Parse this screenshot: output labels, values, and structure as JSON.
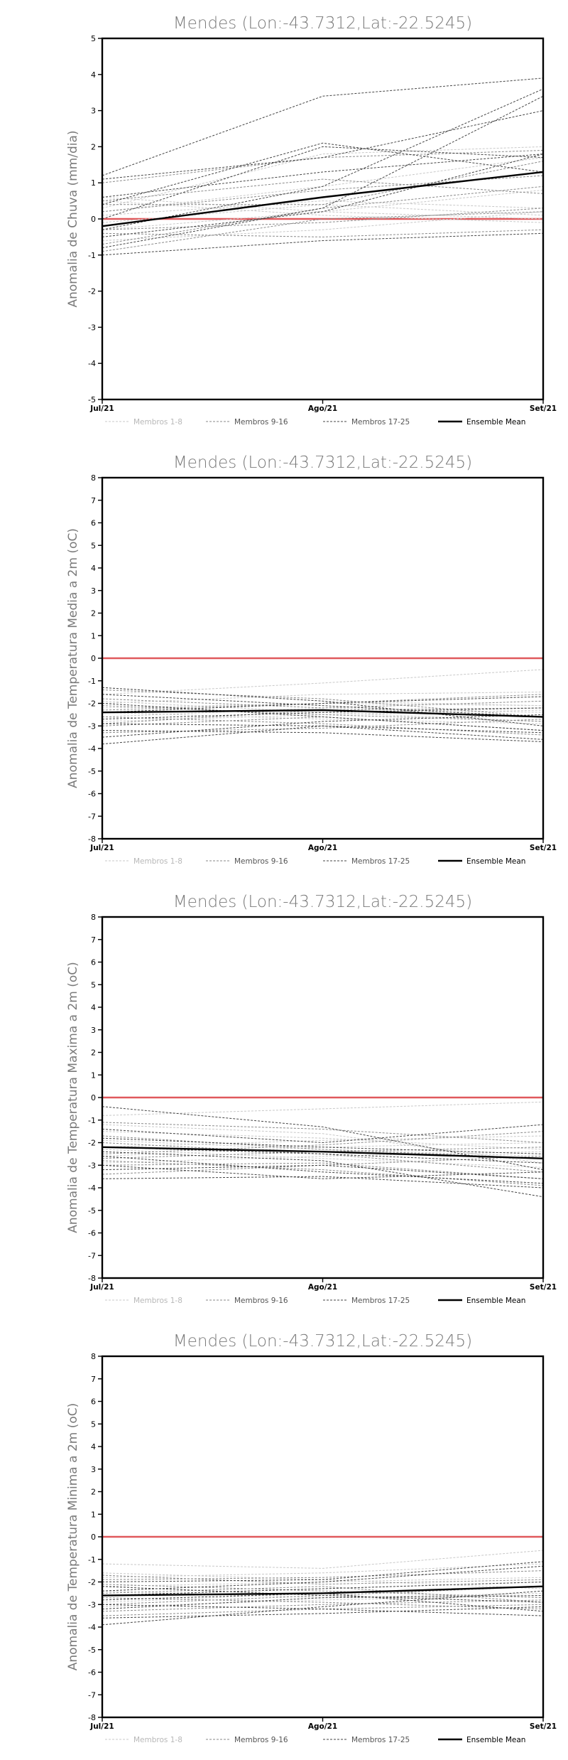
{
  "location_title": "Mendes (Lon:-43.7312,Lat:-22.5245)",
  "colors": {
    "zero_line": "#e0595c",
    "members_1_8": "#c8c8c8",
    "members_9_16": "#8a8a8a",
    "members_17_25": "#444444",
    "ensemble_mean": "#000000"
  },
  "legend": {
    "members_1_8": "Membros 1-8",
    "members_9_16": "Membros 9-16",
    "members_17_25": "Membros 17-25",
    "ensemble_mean": "Ensemble Mean"
  },
  "chart_data": [
    {
      "type": "line",
      "title": "Mendes (Lon:-43.7312,Lat:-22.5245)",
      "ylabel": "Anomalia de Chuva (mm/dia)",
      "xlabel": "",
      "categories": [
        "Jul/21",
        "Ago/21",
        "Set/21"
      ],
      "ylim": [
        -5,
        5
      ],
      "yticks": [
        -5,
        -4,
        -3,
        -2,
        -1,
        0,
        1,
        2,
        3,
        4,
        5
      ],
      "zero_line": 0,
      "grid": false,
      "legend_position": "bottom",
      "series": [
        {
          "group": "members_1_8",
          "values": [
            0.3,
            1.8,
            2.0
          ]
        },
        {
          "group": "members_1_8",
          "values": [
            0.1,
            0.5,
            0.3
          ]
        },
        {
          "group": "members_1_8",
          "values": [
            -0.3,
            0.2,
            0.8
          ]
        },
        {
          "group": "members_1_8",
          "values": [
            0.5,
            0.1,
            -0.1
          ]
        },
        {
          "group": "members_1_8",
          "values": [
            -0.6,
            -0.3,
            0.2
          ]
        },
        {
          "group": "members_1_8",
          "values": [
            0.2,
            0.9,
            1.7
          ]
        },
        {
          "group": "members_1_8",
          "values": [
            -0.1,
            0.4,
            0.1
          ]
        },
        {
          "group": "members_1_8",
          "values": [
            0.6,
            0.2,
            0.0
          ]
        },
        {
          "group": "members_9_16",
          "values": [
            0.4,
            0.4,
            1.6
          ]
        },
        {
          "group": "members_9_16",
          "values": [
            -0.9,
            0.0,
            0.2
          ]
        },
        {
          "group": "members_9_16",
          "values": [
            1.0,
            1.7,
            1.9
          ]
        },
        {
          "group": "members_9_16",
          "values": [
            -0.4,
            -0.5,
            -0.3
          ]
        },
        {
          "group": "members_9_16",
          "values": [
            0.2,
            0.8,
            1.2
          ]
        },
        {
          "group": "members_9_16",
          "values": [
            -0.7,
            0.3,
            0.9
          ]
        },
        {
          "group": "members_9_16",
          "values": [
            0.5,
            1.1,
            0.7
          ]
        },
        {
          "group": "members_9_16",
          "values": [
            -0.3,
            -0.1,
            0.3
          ]
        },
        {
          "group": "members_17_25",
          "values": [
            1.2,
            3.4,
            3.9
          ]
        },
        {
          "group": "members_17_25",
          "values": [
            -0.3,
            0.9,
            3.6
          ]
        },
        {
          "group": "members_17_25",
          "values": [
            0.4,
            2.1,
            1.3
          ]
        },
        {
          "group": "members_17_25",
          "values": [
            -0.8,
            0.3,
            3.4
          ]
        },
        {
          "group": "members_17_25",
          "values": [
            1.1,
            1.7,
            3.0
          ]
        },
        {
          "group": "members_17_25",
          "values": [
            -0.5,
            0.2,
            1.8
          ]
        },
        {
          "group": "members_17_25",
          "values": [
            0.0,
            2.0,
            1.7
          ]
        },
        {
          "group": "members_17_25",
          "values": [
            -1.0,
            -0.6,
            -0.4
          ]
        },
        {
          "group": "members_17_25",
          "values": [
            0.6,
            1.3,
            1.8
          ]
        },
        {
          "group": "ensemble_mean",
          "name": "Ensemble Mean",
          "values": [
            -0.2,
            0.6,
            1.3
          ]
        }
      ]
    },
    {
      "type": "line",
      "title": "Mendes (Lon:-43.7312,Lat:-22.5245)",
      "ylabel": "Anomalia de Temperatura Media a 2m (oC)",
      "xlabel": "",
      "categories": [
        "Jul/21",
        "Ago/21",
        "Set/21"
      ],
      "ylim": [
        -8,
        8
      ],
      "yticks": [
        -8,
        -7,
        -6,
        -5,
        -4,
        -3,
        -2,
        -1,
        0,
        1,
        2,
        3,
        4,
        5,
        6,
        7,
        8
      ],
      "zero_line": 0,
      "grid": false,
      "legend_position": "bottom",
      "series": [
        {
          "group": "members_1_8",
          "values": [
            -1.6,
            -1.1,
            -0.5
          ]
        },
        {
          "group": "members_1_8",
          "values": [
            -1.3,
            -1.9,
            -2.1
          ]
        },
        {
          "group": "members_1_8",
          "values": [
            -2.0,
            -1.6,
            -1.5
          ]
        },
        {
          "group": "members_1_8",
          "values": [
            -2.6,
            -2.2,
            -2.4
          ]
        },
        {
          "group": "members_1_8",
          "values": [
            -1.9,
            -2.4,
            -2.8
          ]
        },
        {
          "group": "members_1_8",
          "values": [
            -2.2,
            -2.0,
            -2.1
          ]
        },
        {
          "group": "members_1_8",
          "values": [
            -2.8,
            -2.5,
            -2.3
          ]
        },
        {
          "group": "members_1_8",
          "values": [
            -2.4,
            -2.7,
            -2.9
          ]
        },
        {
          "group": "members_9_16",
          "values": [
            -1.4,
            -1.8,
            -2.6
          ]
        },
        {
          "group": "members_9_16",
          "values": [
            -2.3,
            -2.0,
            -1.6
          ]
        },
        {
          "group": "members_9_16",
          "values": [
            -3.0,
            -2.6,
            -3.2
          ]
        },
        {
          "group": "members_9_16",
          "values": [
            -1.8,
            -2.2,
            -1.9
          ]
        },
        {
          "group": "members_9_16",
          "values": [
            -2.6,
            -2.9,
            -3.4
          ]
        },
        {
          "group": "members_9_16",
          "values": [
            -3.3,
            -3.1,
            -2.7
          ]
        },
        {
          "group": "members_9_16",
          "values": [
            -2.1,
            -2.5,
            -2.8
          ]
        },
        {
          "group": "members_9_16",
          "values": [
            -2.9,
            -2.3,
            -2.2
          ]
        },
        {
          "group": "members_17_25",
          "values": [
            -3.8,
            -3.0,
            -3.6
          ]
        },
        {
          "group": "members_17_25",
          "values": [
            -1.3,
            -1.9,
            -3.0
          ]
        },
        {
          "group": "members_17_25",
          "values": [
            -2.4,
            -2.0,
            -1.7
          ]
        },
        {
          "group": "members_17_25",
          "values": [
            -3.2,
            -3.3,
            -3.7
          ]
        },
        {
          "group": "members_17_25",
          "values": [
            -2.7,
            -2.4,
            -2.2
          ]
        },
        {
          "group": "members_17_25",
          "values": [
            -2.0,
            -2.6,
            -3.2
          ]
        },
        {
          "group": "members_17_25",
          "values": [
            -3.5,
            -2.8,
            -2.5
          ]
        },
        {
          "group": "members_17_25",
          "values": [
            -1.6,
            -2.1,
            -2.6
          ]
        },
        {
          "group": "members_17_25",
          "values": [
            -2.9,
            -3.0,
            -3.3
          ]
        },
        {
          "group": "ensemble_mean",
          "name": "Ensemble Mean",
          "values": [
            -2.4,
            -2.3,
            -2.6
          ]
        }
      ]
    },
    {
      "type": "line",
      "title": "Mendes (Lon:-43.7312,Lat:-22.5245)",
      "ylabel": "Anomalia de Temperatura Maxima a 2m (oC)",
      "xlabel": "",
      "categories": [
        "Jul/21",
        "Ago/21",
        "Set/21"
      ],
      "ylim": [
        -8,
        8
      ],
      "yticks": [
        -8,
        -7,
        -6,
        -5,
        -4,
        -3,
        -2,
        -1,
        0,
        1,
        2,
        3,
        4,
        5,
        6,
        7,
        8
      ],
      "zero_line": 0,
      "grid": false,
      "legend_position": "bottom",
      "series": [
        {
          "group": "members_1_8",
          "values": [
            -0.8,
            -0.5,
            -0.2
          ]
        },
        {
          "group": "members_1_8",
          "values": [
            -1.5,
            -1.8,
            -2.3
          ]
        },
        {
          "group": "members_1_8",
          "values": [
            -2.2,
            -1.9,
            -1.7
          ]
        },
        {
          "group": "members_1_8",
          "values": [
            -1.9,
            -2.3,
            -2.6
          ]
        },
        {
          "group": "members_1_8",
          "values": [
            -2.6,
            -2.2,
            -2.0
          ]
        },
        {
          "group": "members_1_8",
          "values": [
            -1.2,
            -1.6,
            -2.9
          ]
        },
        {
          "group": "members_1_8",
          "values": [
            -2.9,
            -2.6,
            -2.4
          ]
        },
        {
          "group": "members_1_8",
          "values": [
            -2.3,
            -2.7,
            -3.1
          ]
        },
        {
          "group": "members_9_16",
          "values": [
            -1.1,
            -1.4,
            -2.0
          ]
        },
        {
          "group": "members_9_16",
          "values": [
            -2.5,
            -2.1,
            -1.5
          ]
        },
        {
          "group": "members_9_16",
          "values": [
            -3.0,
            -2.9,
            -3.6
          ]
        },
        {
          "group": "members_9_16",
          "values": [
            -1.7,
            -2.3,
            -2.7
          ]
        },
        {
          "group": "members_9_16",
          "values": [
            -2.8,
            -3.2,
            -3.9
          ]
        },
        {
          "group": "members_9_16",
          "values": [
            -3.4,
            -3.0,
            -2.6
          ]
        },
        {
          "group": "members_9_16",
          "values": [
            -2.0,
            -2.5,
            -3.3
          ]
        },
        {
          "group": "members_9_16",
          "values": [
            -2.7,
            -2.4,
            -2.2
          ]
        },
        {
          "group": "members_17_25",
          "values": [
            -0.4,
            -1.3,
            -3.2
          ]
        },
        {
          "group": "members_17_25",
          "values": [
            -3.6,
            -3.5,
            -4.0
          ]
        },
        {
          "group": "members_17_25",
          "values": [
            -1.4,
            -2.0,
            -1.2
          ]
        },
        {
          "group": "members_17_25",
          "values": [
            -3.2,
            -3.0,
            -3.6
          ]
        },
        {
          "group": "members_17_25",
          "values": [
            -2.4,
            -2.8,
            -4.4
          ]
        },
        {
          "group": "members_17_25",
          "values": [
            -1.8,
            -2.2,
            -2.5
          ]
        },
        {
          "group": "members_17_25",
          "values": [
            -3.0,
            -3.6,
            -3.3
          ]
        },
        {
          "group": "members_17_25",
          "values": [
            -2.2,
            -2.5,
            -2.9
          ]
        },
        {
          "group": "members_17_25",
          "values": [
            -2.6,
            -3.3,
            -3.8
          ]
        },
        {
          "group": "ensemble_mean",
          "name": "Ensemble Mean",
          "values": [
            -2.2,
            -2.4,
            -2.7
          ]
        }
      ]
    },
    {
      "type": "line",
      "title": "Mendes (Lon:-43.7312,Lat:-22.5245)",
      "ylabel": "Anomalia de Temperatura Minima a 2m (oC)",
      "xlabel": "",
      "categories": [
        "Jul/21",
        "Ago/21",
        "Set/21"
      ],
      "ylim": [
        -8,
        8
      ],
      "yticks": [
        -8,
        -7,
        -6,
        -5,
        -4,
        -3,
        -2,
        -1,
        0,
        1,
        2,
        3,
        4,
        5,
        6,
        7,
        8
      ],
      "zero_line": 0,
      "grid": false,
      "legend_position": "bottom",
      "series": [
        {
          "group": "members_1_8",
          "values": [
            -1.2,
            -1.4,
            -0.6
          ]
        },
        {
          "group": "members_1_8",
          "values": [
            -1.8,
            -1.6,
            -1.2
          ]
        },
        {
          "group": "members_1_8",
          "values": [
            -2.2,
            -2.0,
            -1.8
          ]
        },
        {
          "group": "members_1_8",
          "values": [
            -2.6,
            -2.3,
            -2.0
          ]
        },
        {
          "group": "members_1_8",
          "values": [
            -1.6,
            -1.9,
            -2.3
          ]
        },
        {
          "group": "members_1_8",
          "values": [
            -2.9,
            -2.5,
            -2.2
          ]
        },
        {
          "group": "members_1_8",
          "values": [
            -2.4,
            -2.7,
            -2.5
          ]
        },
        {
          "group": "members_1_8",
          "values": [
            -3.1,
            -2.8,
            -2.6
          ]
        },
        {
          "group": "members_9_16",
          "values": [
            -1.9,
            -1.8,
            -1.5
          ]
        },
        {
          "group": "members_9_16",
          "values": [
            -2.5,
            -2.2,
            -2.9
          ]
        },
        {
          "group": "members_9_16",
          "values": [
            -3.0,
            -2.6,
            -2.2
          ]
        },
        {
          "group": "members_9_16",
          "values": [
            -2.1,
            -2.4,
            -2.7
          ]
        },
        {
          "group": "members_9_16",
          "values": [
            -3.3,
            -3.0,
            -2.8
          ]
        },
        {
          "group": "members_9_16",
          "values": [
            -2.7,
            -2.9,
            -3.2
          ]
        },
        {
          "group": "members_9_16",
          "values": [
            -1.7,
            -2.1,
            -1.9
          ]
        },
        {
          "group": "members_9_16",
          "values": [
            -3.5,
            -3.2,
            -3.0
          ]
        },
        {
          "group": "members_17_25",
          "values": [
            -3.9,
            -3.1,
            -2.4
          ]
        },
        {
          "group": "members_17_25",
          "values": [
            -2.0,
            -1.9,
            -1.1
          ]
        },
        {
          "group": "members_17_25",
          "values": [
            -2.8,
            -2.5,
            -3.3
          ]
        },
        {
          "group": "members_17_25",
          "values": [
            -3.2,
            -2.7,
            -2.6
          ]
        },
        {
          "group": "members_17_25",
          "values": [
            -2.4,
            -2.0,
            -1.3
          ]
        },
        {
          "group": "members_17_25",
          "values": [
            -3.6,
            -3.4,
            -3.1
          ]
        },
        {
          "group": "members_17_25",
          "values": [
            -2.6,
            -2.3,
            -2.0
          ]
        },
        {
          "group": "members_17_25",
          "values": [
            -3.0,
            -3.2,
            -3.5
          ]
        },
        {
          "group": "members_17_25",
          "values": [
            -2.2,
            -2.6,
            -2.9
          ]
        },
        {
          "group": "ensemble_mean",
          "name": "Ensemble Mean",
          "values": [
            -2.6,
            -2.5,
            -2.2
          ]
        }
      ]
    }
  ]
}
